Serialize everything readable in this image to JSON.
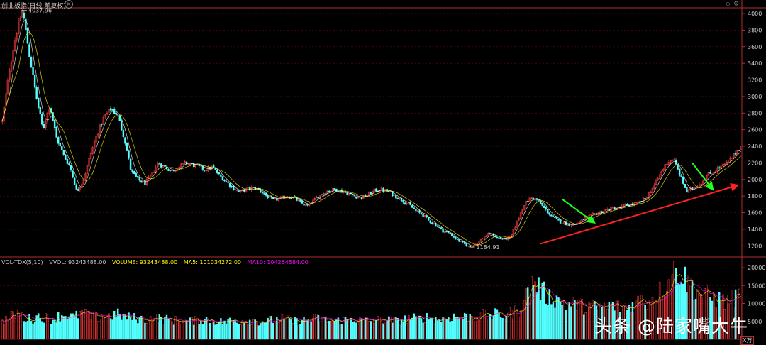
{
  "header": {
    "title": "创业板指(日线 前复权)",
    "close_icon": "close-icon",
    "nav_left_icon": "diamond-icon",
    "nav_right_icon": "gear-icon"
  },
  "annotations": {
    "high_label": "4037.96",
    "low_label": "1184.91"
  },
  "volume_header": {
    "indicator": "VOL-TDX(5,10)",
    "vvol": "VVOL: 93243488.00",
    "volume": "VOLUME: 93243488.00",
    "ma5": "MA5: 101034272.00",
    "ma10": "MA10: 104254584.00"
  },
  "watermark": "头条 @陆家嘴大牛",
  "unit_label": "X万",
  "colors": {
    "up": "#ff3c3c",
    "down": "#54ffff",
    "axis": "#b03030",
    "grid": "#5a1010",
    "ma5": "#ffff00",
    "ma10": "#ff00ff",
    "trend_up": "#ff2020",
    "trend_down": "#20ff20"
  },
  "chart_data": [
    {
      "type": "candlestick",
      "title": "创业板指(日线 前复权)",
      "y_ticks": [
        1200,
        1400,
        1600,
        1800,
        2000,
        2200,
        2400,
        2600,
        2800,
        3000,
        3200,
        3400,
        3600,
        3800,
        4000
      ],
      "ylim": [
        1100,
        4060
      ],
      "grid": true,
      "approx_close_path": [
        2700,
        3300,
        3750,
        4037.96,
        3500,
        3000,
        2600,
        2900,
        2500,
        2300,
        2150,
        1850,
        2000,
        2300,
        2550,
        2750,
        2850,
        2780,
        2500,
        2100,
        2000,
        1950,
        2050,
        2200,
        2150,
        2100,
        2150,
        2200,
        2180,
        2150,
        2120,
        2150,
        2050,
        1980,
        1900,
        1850,
        1880,
        1900,
        1870,
        1800,
        1750,
        1770,
        1800,
        1780,
        1720,
        1680,
        1750,
        1820,
        1860,
        1880,
        1860,
        1830,
        1800,
        1780,
        1820,
        1870,
        1880,
        1850,
        1800,
        1750,
        1700,
        1620,
        1580,
        1500,
        1450,
        1380,
        1350,
        1280,
        1230,
        1184.91,
        1230,
        1300,
        1350,
        1300,
        1280,
        1300,
        1500,
        1700,
        1780,
        1750,
        1650,
        1560,
        1500,
        1470,
        1450,
        1480,
        1530,
        1570,
        1600,
        1630,
        1650,
        1660,
        1690,
        1700,
        1720,
        1780,
        1900,
        2050,
        2200,
        2250,
        2050,
        1850,
        1900,
        1950,
        2050,
        2100,
        2150,
        2200,
        2300,
        2400
      ],
      "high": 4037.96,
      "low": 1184.91
    },
    {
      "type": "bar",
      "title": "VOL-TDX(5,10)",
      "y_ticks": [
        5000,
        10000,
        15000,
        20000
      ],
      "ylim": [
        0,
        21000
      ],
      "approx_volume_path": [
        5000,
        6000,
        7500,
        6000,
        5500,
        6500,
        6000,
        5500,
        6500,
        7000,
        6000,
        7500,
        6500,
        6000,
        6800,
        6500,
        7000,
        6200,
        6000,
        5800,
        5500,
        6000,
        5800,
        5500,
        5200,
        5400,
        5000,
        5200,
        5600,
        5400,
        5000,
        4800,
        5200,
        5000,
        5500,
        5300,
        5000,
        5200,
        5400,
        5600,
        5200,
        5000,
        5300,
        5600,
        5800,
        5400,
        5000,
        5200,
        5500,
        5800,
        5300,
        5100,
        5300,
        5500,
        5300,
        5000,
        5500,
        6000,
        5500,
        6200,
        5800,
        5500,
        6000,
        6400,
        6000,
        6500,
        6200,
        6800,
        6600,
        7000,
        6600,
        7500,
        8000,
        12000,
        16500,
        14000,
        12000,
        11500,
        10500,
        9500,
        10000,
        9000,
        9500,
        8500,
        9000,
        9500,
        9000,
        8500,
        10000,
        11000,
        10500,
        12000,
        14000,
        16000,
        20000,
        17500,
        15000,
        13000,
        12500,
        11500,
        11000,
        10500,
        11500,
        12500
      ]
    }
  ]
}
